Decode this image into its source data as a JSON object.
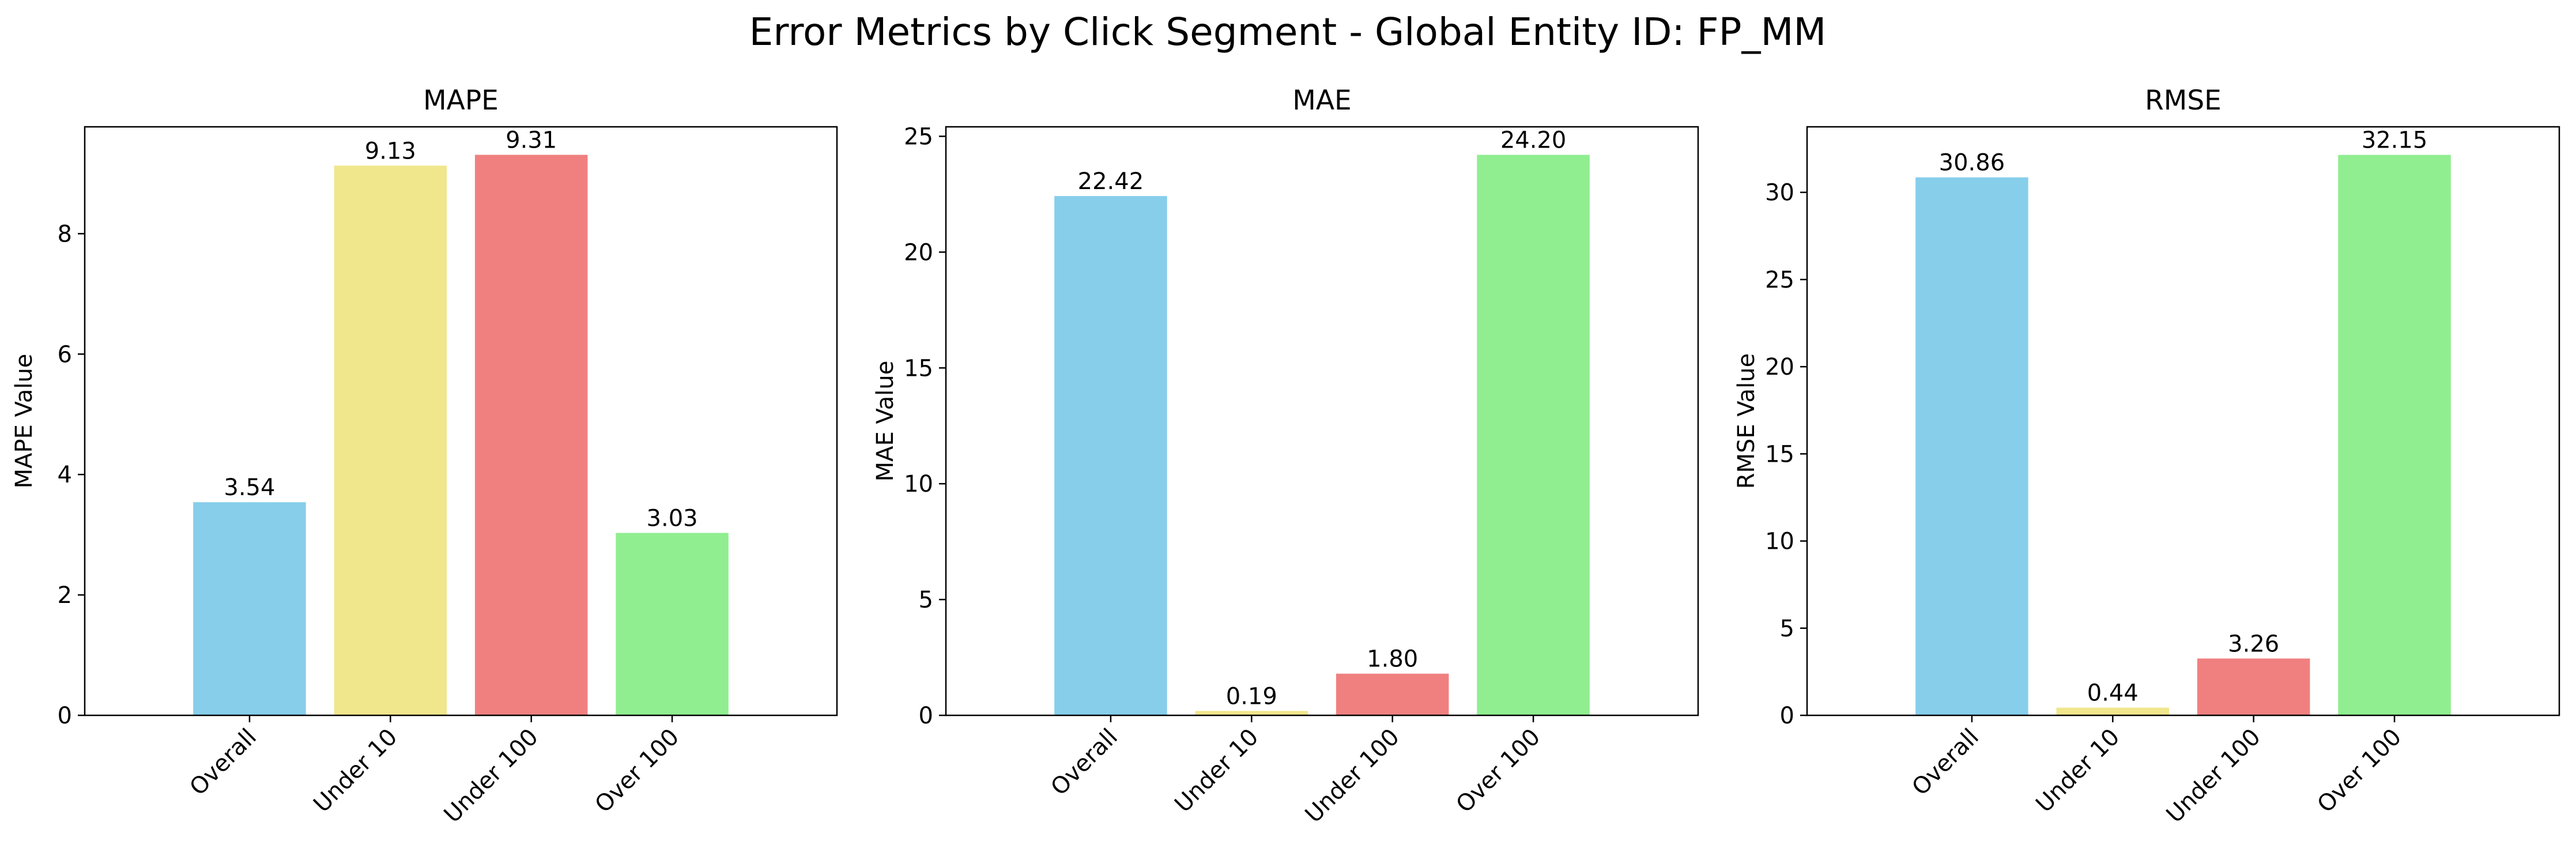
{
  "figure": {
    "title": "Error Metrics by Click Segment - Global Entity ID: FP_MM"
  },
  "colors": {
    "Overall": "#87ceeb",
    "Under 10": "#f0e68c",
    "Under 100": "#f08080",
    "Over 100": "#90ee90",
    "axes": "#000000"
  },
  "chart_data": [
    {
      "type": "bar",
      "title": "MAPE",
      "xlabel": "",
      "ylabel": "MAPE Value",
      "categories": [
        "Overall",
        "Under 10",
        "Under 100",
        "Over 100"
      ],
      "values": [
        3.54,
        9.13,
        9.31,
        3.03
      ],
      "value_labels": [
        "3.54",
        "9.13",
        "9.31",
        "3.03"
      ],
      "ylim": [
        0,
        9.775
      ],
      "yticks": [
        0,
        2,
        4,
        6,
        8
      ],
      "ytick_labels": [
        "0",
        "2",
        "4",
        "6",
        "8"
      ],
      "grid": false,
      "legend": "none"
    },
    {
      "type": "bar",
      "title": "MAE",
      "xlabel": "",
      "ylabel": "MAE Value",
      "categories": [
        "Overall",
        "Under 10",
        "Under 100",
        "Over 100"
      ],
      "values": [
        22.42,
        0.19,
        1.8,
        24.2
      ],
      "value_labels": [
        "22.42",
        "0.19",
        "1.80",
        "24.20"
      ],
      "ylim": [
        0,
        25.41
      ],
      "yticks": [
        0,
        5,
        10,
        15,
        20,
        25
      ],
      "ytick_labels": [
        "0",
        "5",
        "10",
        "15",
        "20",
        "25"
      ],
      "grid": false,
      "legend": "none"
    },
    {
      "type": "bar",
      "title": "RMSE",
      "xlabel": "",
      "ylabel": "RMSE Value",
      "categories": [
        "Overall",
        "Under 10",
        "Under 100",
        "Over 100"
      ],
      "values": [
        30.86,
        0.44,
        3.26,
        32.15
      ],
      "value_labels": [
        "30.86",
        "0.44",
        "3.26",
        "32.15"
      ],
      "ylim": [
        0,
        33.76
      ],
      "yticks": [
        0,
        5,
        10,
        15,
        20,
        25,
        30
      ],
      "ytick_labels": [
        "0",
        "5",
        "10",
        "15",
        "20",
        "25",
        "30"
      ],
      "grid": false,
      "legend": "none"
    }
  ]
}
